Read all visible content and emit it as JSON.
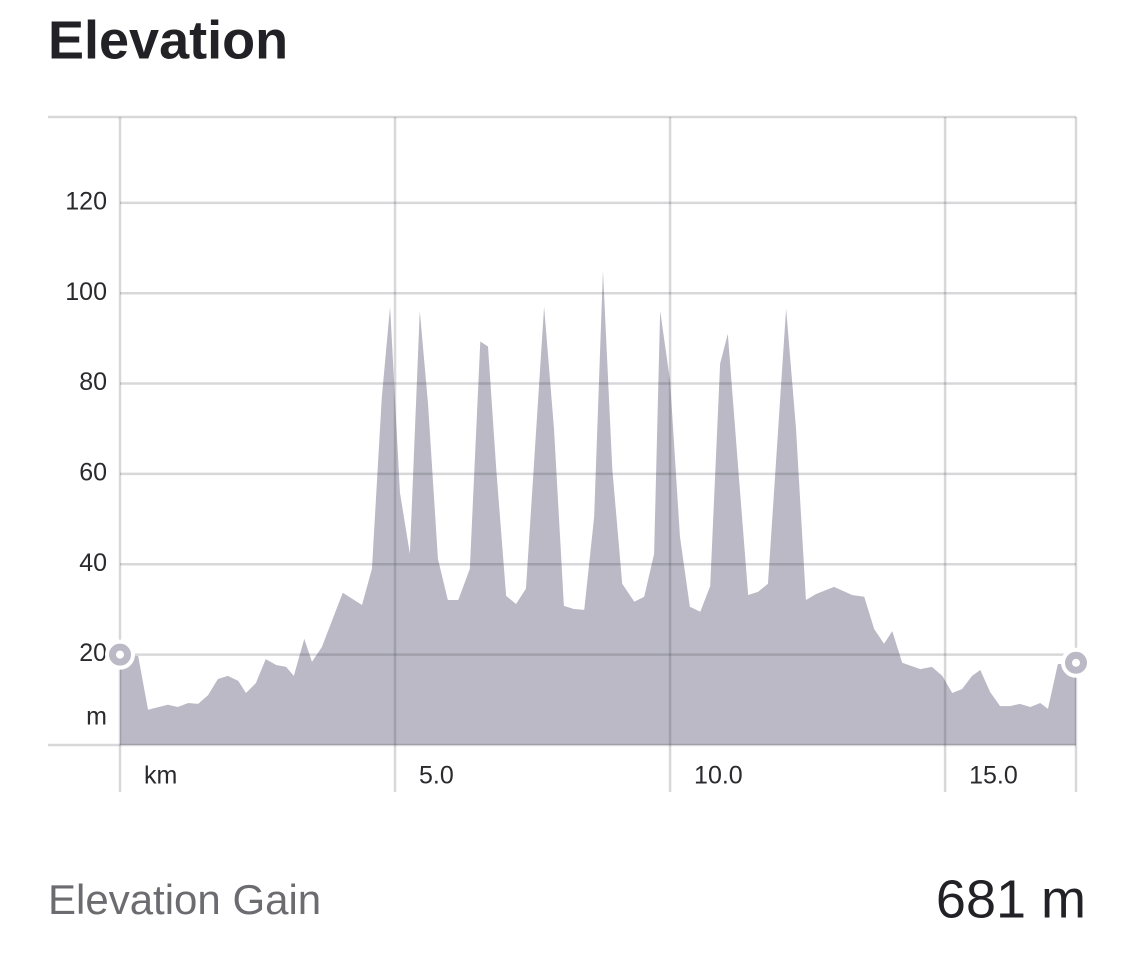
{
  "chart_data": {
    "type": "area",
    "title": "Elevation",
    "y_label": "m",
    "x_label": "km",
    "color": "#bab9c5",
    "grid": true,
    "xlim": [
      0,
      17.38
    ],
    "ylim": [
      0,
      139
    ],
    "xticks": [
      {
        "value": 5,
        "label": "5.0"
      },
      {
        "value": 10,
        "label": "10.0"
      },
      {
        "value": 15,
        "label": "15.0"
      }
    ],
    "yticks": [
      20,
      40,
      60,
      80,
      100,
      120
    ],
    "x": [
      0,
      0.33,
      0.51,
      0.87,
      1.05,
      1.24,
      1.42,
      1.6,
      1.78,
      1.96,
      2.15,
      2.29,
      2.47,
      2.65,
      2.84,
      3.02,
      3.16,
      3.35,
      3.49,
      3.67,
      4.05,
      4.4,
      4.58,
      4.76,
      4.91,
      5.09,
      5.27,
      5.45,
      5.6,
      5.78,
      5.96,
      6.15,
      6.36,
      6.55,
      6.69,
      6.84,
      7.02,
      7.2,
      7.38,
      7.71,
      7.89,
      8.07,
      8.25,
      8.44,
      8.62,
      8.78,
      8.95,
      9.13,
      9.35,
      9.53,
      9.71,
      9.82,
      10,
      10.18,
      10.36,
      10.55,
      10.73,
      10.91,
      11.05,
      11.24,
      11.42,
      11.6,
      11.78,
      12.11,
      12.29,
      12.47,
      12.65,
      12.98,
      13.31,
      13.53,
      13.71,
      13.89,
      14.04,
      14.22,
      14.55,
      14.76,
      14.95,
      15.13,
      15.31,
      15.49,
      15.64,
      15.82,
      16,
      16.18,
      16.36,
      16.55,
      16.73,
      16.87,
      17.05,
      17.38
    ],
    "values": [
      20,
      19.7,
      7.8,
      8.9,
      8.4,
      9.3,
      9.1,
      11,
      14.6,
      15.3,
      14.2,
      11.5,
      13.7,
      19,
      17.7,
      17.3,
      15.3,
      23.5,
      18.4,
      21.7,
      33.7,
      31,
      39,
      77,
      97,
      55.8,
      42.3,
      96.1,
      75.5,
      41.2,
      32.1,
      32.1,
      39,
      89.3,
      88.2,
      61.1,
      33,
      31.2,
      34.6,
      97,
      70,
      30.8,
      30.1,
      29.9,
      50.5,
      105,
      61.1,
      35.7,
      31.7,
      32.8,
      42.3,
      96.1,
      80.6,
      46.1,
      30.6,
      29.5,
      35.2,
      84.4,
      91,
      61.1,
      33.2,
      33.9,
      35.7,
      96.6,
      70,
      32.1,
      33.4,
      35,
      33.2,
      32.8,
      25.7,
      22.4,
      25.2,
      18.2,
      16.8,
      17.3,
      15.3,
      11.5,
      12.4,
      15.3,
      16.6,
      11.7,
      8.6,
      8.6,
      9.1,
      8.4,
      9.3,
      8,
      17.9,
      18.2
    ]
  },
  "stats": {
    "label": "Elevation Gain",
    "value": "681 m"
  }
}
